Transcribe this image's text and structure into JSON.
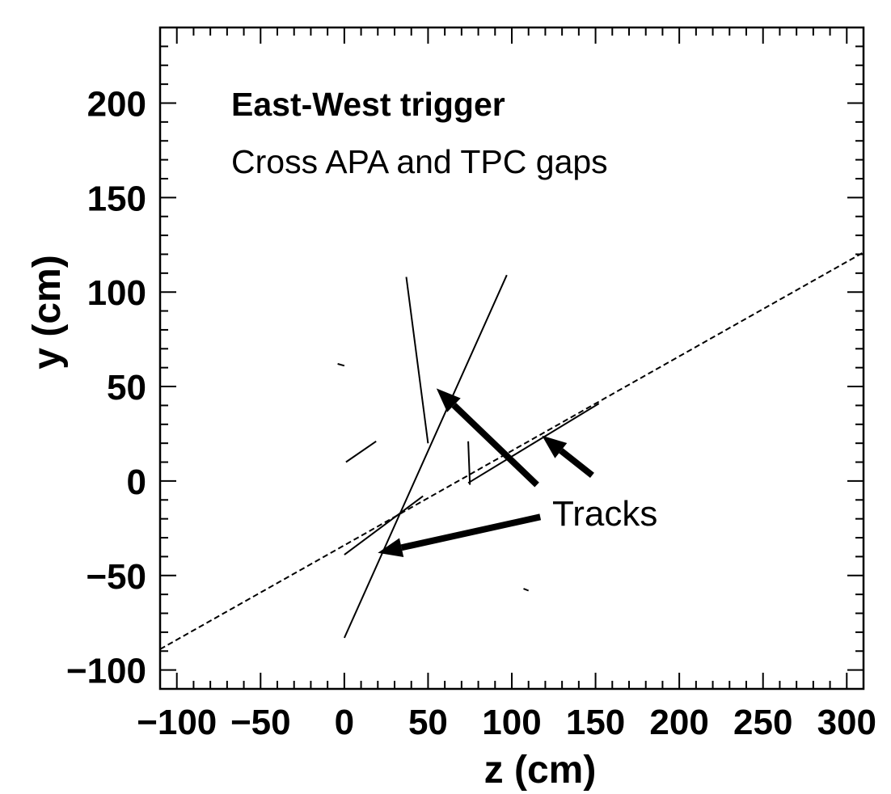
{
  "chart_data": {
    "type": "scatter",
    "title": "East-West trigger",
    "subtitle": "Cross APA and TPC gaps",
    "xlabel": "z (cm)",
    "ylabel": "y (cm)",
    "xlim": [
      -110,
      310
    ],
    "ylim": [
      -110,
      240
    ],
    "xticks": [
      -100,
      -50,
      0,
      50,
      100,
      150,
      200,
      250,
      300
    ],
    "yticks": [
      -100,
      -50,
      0,
      50,
      100,
      150,
      200
    ],
    "xtick_labels": [
      "−100",
      "−50",
      "0",
      "50",
      "100",
      "150",
      "200",
      "250",
      "300"
    ],
    "ytick_labels": [
      "−100",
      "−50",
      "0",
      "50",
      "100",
      "150",
      "200"
    ],
    "grid": false,
    "fit_line": {
      "style": "dashed",
      "points": [
        [
          -110,
          -89
        ],
        [
          310,
          121
        ]
      ]
    },
    "tracks": [
      {
        "points": [
          [
            0,
            -83
          ],
          [
            97,
            109
          ]
        ]
      },
      {
        "points": [
          [
            37,
            108
          ],
          [
            50,
            20
          ]
        ]
      },
      {
        "points": [
          [
            0,
            -39
          ],
          [
            47,
            -8
          ]
        ]
      },
      {
        "points": [
          [
            74,
            -1
          ],
          [
            152,
            41
          ]
        ]
      },
      {
        "points": [
          [
            74,
            21
          ],
          [
            75,
            -2
          ]
        ]
      },
      {
        "points": [
          [
            1,
            10
          ],
          [
            19,
            21
          ]
        ]
      },
      {
        "points": [
          [
            -4,
            62
          ],
          [
            0,
            61
          ]
        ]
      },
      {
        "points": [
          [
            107,
            -57
          ],
          [
            110,
            -58
          ]
        ]
      }
    ],
    "annotations": [
      {
        "text": "Tracks",
        "at": [
          125,
          -17
        ]
      },
      {
        "kind": "arrow",
        "from": [
          115,
          -2
        ],
        "to": [
          55,
          49
        ]
      },
      {
        "kind": "arrow",
        "from": [
          148,
          3
        ],
        "to": [
          118,
          24
        ]
      },
      {
        "kind": "arrow",
        "from": [
          117,
          -19
        ],
        "to": [
          20,
          -38
        ]
      }
    ]
  }
}
